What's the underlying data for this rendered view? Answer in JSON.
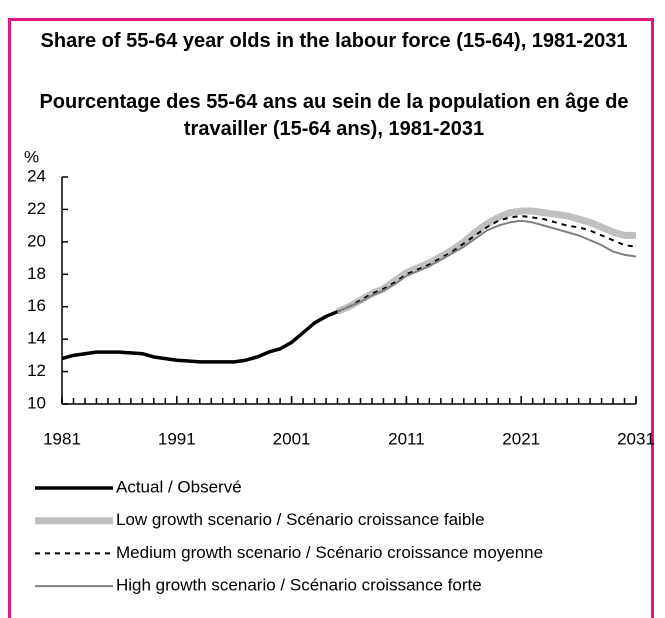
{
  "chart_data": {
    "type": "line",
    "title": "Share of 55-64 year olds in the labour force (15-64), 1981-2031",
    "subtitle": "Pourcentage des 55-64 ans au sein de la population en âge de travailler (15-64 ans), 1981-2031",
    "y_label": "%",
    "x": [
      1981,
      1982,
      1983,
      1984,
      1985,
      1986,
      1987,
      1988,
      1989,
      1990,
      1991,
      1992,
      1993,
      1994,
      1995,
      1996,
      1997,
      1998,
      1999,
      2000,
      2001,
      2002,
      2003,
      2004,
      2005,
      2006,
      2007,
      2008,
      2009,
      2010,
      2011,
      2012,
      2013,
      2014,
      2015,
      2016,
      2017,
      2018,
      2019,
      2020,
      2021,
      2022,
      2023,
      2024,
      2025,
      2026,
      2027,
      2028,
      2029,
      2030,
      2031
    ],
    "xlim": [
      1981,
      2031
    ],
    "xticks": [
      1981,
      1991,
      2001,
      2011,
      2021,
      2031
    ],
    "ylim": [
      10,
      24
    ],
    "yticks": [
      10,
      12,
      14,
      16,
      18,
      20,
      22,
      24
    ],
    "legend": "bottom",
    "series": [
      {
        "name": "Actual / Observé",
        "color": "#000000",
        "values": [
          12.8,
          13.0,
          13.1,
          13.2,
          13.2,
          13.2,
          13.15,
          13.1,
          12.9,
          12.8,
          12.7,
          12.65,
          12.6,
          12.6,
          12.6,
          12.6,
          12.7,
          12.9,
          13.2,
          13.4,
          13.8,
          14.4,
          15.0,
          15.4,
          15.7,
          null,
          null,
          null,
          null,
          null,
          null,
          null,
          null,
          null,
          null,
          null,
          null,
          null,
          null,
          null,
          null,
          null,
          null,
          null,
          null,
          null,
          null,
          null,
          null,
          null,
          null
        ]
      },
      {
        "name": "Low growth scenario / Scénario croissance faible",
        "color": "#c0c0c0",
        "values": [
          null,
          null,
          null,
          null,
          null,
          null,
          null,
          null,
          null,
          null,
          null,
          null,
          null,
          null,
          null,
          null,
          null,
          null,
          null,
          null,
          null,
          null,
          null,
          null,
          15.7,
          16.0,
          16.4,
          16.8,
          17.1,
          17.6,
          18.1,
          18.4,
          18.7,
          19.1,
          19.5,
          20.0,
          20.6,
          21.1,
          21.5,
          21.8,
          21.9,
          21.9,
          21.8,
          21.7,
          21.6,
          21.4,
          21.2,
          20.9,
          20.6,
          20.4,
          20.4
        ]
      },
      {
        "name": "Medium growth scenario / Scénario croissance moyenne",
        "color": "#000000",
        "values": [
          null,
          null,
          null,
          null,
          null,
          null,
          null,
          null,
          null,
          null,
          null,
          null,
          null,
          null,
          null,
          null,
          null,
          null,
          null,
          null,
          null,
          null,
          null,
          null,
          15.7,
          16.0,
          16.4,
          16.8,
          17.1,
          17.5,
          18.0,
          18.3,
          18.6,
          19.0,
          19.4,
          19.9,
          20.4,
          20.9,
          21.3,
          21.5,
          21.6,
          21.5,
          21.4,
          21.2,
          21.0,
          20.9,
          20.7,
          20.4,
          20.1,
          19.8,
          19.7
        ]
      },
      {
        "name": "High growth scenario / Scénario croissance forte",
        "color": "#808080",
        "values": [
          null,
          null,
          null,
          null,
          null,
          null,
          null,
          null,
          null,
          null,
          null,
          null,
          null,
          null,
          null,
          null,
          null,
          null,
          null,
          null,
          null,
          null,
          null,
          null,
          15.7,
          16.0,
          16.3,
          16.7,
          17.0,
          17.4,
          17.9,
          18.2,
          18.5,
          18.9,
          19.3,
          19.7,
          20.2,
          20.7,
          21.0,
          21.2,
          21.3,
          21.2,
          21.0,
          20.8,
          20.6,
          20.4,
          20.1,
          19.8,
          19.4,
          19.2,
          19.1
        ]
      }
    ]
  }
}
